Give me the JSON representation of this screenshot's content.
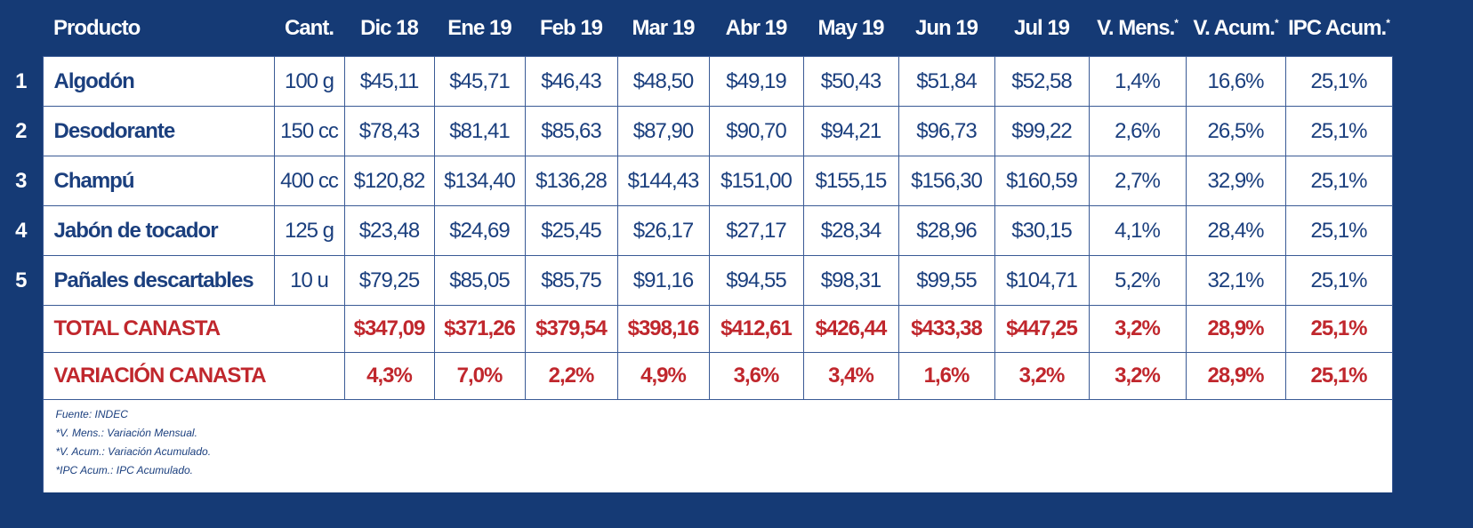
{
  "colors": {
    "background": "#153a75",
    "text": "#1b3f7e",
    "accent": "#c0272d"
  },
  "chart_data": {
    "type": "table",
    "columns": [
      "Producto",
      "Cant.",
      "Dic  18",
      "Ene 19",
      "Feb 19",
      "Mar 19",
      "Abr 19",
      "May 19",
      "Jun 19",
      "Jul 19",
      "V. Mens.",
      "V. Acum.",
      "IPC Acum."
    ],
    "asterisk": "*",
    "rows": [
      {
        "n": "1",
        "product": "Algodón",
        "qty": "100 g",
        "values": [
          "$45,11",
          "$45,71",
          "$46,43",
          "$48,50",
          "$49,19",
          "$50,43",
          "$51,84",
          "$52,58",
          "1,4%",
          "16,6%",
          "25,1%"
        ]
      },
      {
        "n": "2",
        "product": "Desodorante",
        "qty": "150 cc",
        "values": [
          "$78,43",
          "$81,41",
          "$85,63",
          "$87,90",
          "$90,70",
          "$94,21",
          "$96,73",
          "$99,22",
          "2,6%",
          "26,5%",
          "25,1%"
        ]
      },
      {
        "n": "3",
        "product": "Champú",
        "qty": "400 cc",
        "values": [
          "$120,82",
          "$134,40",
          "$136,28",
          "$144,43",
          "$151,00",
          "$155,15",
          "$156,30",
          "$160,59",
          "2,7%",
          "32,9%",
          "25,1%"
        ]
      },
      {
        "n": "4",
        "product": "Jabón de tocador",
        "qty": "125 g",
        "values": [
          "$23,48",
          "$24,69",
          "$25,45",
          "$26,17",
          "$27,17",
          "$28,34",
          "$28,96",
          "$30,15",
          "4,1%",
          "28,4%",
          "25,1%"
        ]
      },
      {
        "n": "5",
        "product": "Pañales descartables",
        "qty": "10 u",
        "values": [
          "$79,25",
          "$85,05",
          "$85,75",
          "$91,16",
          "$94,55",
          "$98,31",
          "$99,55",
          "$104,71",
          "5,2%",
          "32,1%",
          "25,1%"
        ]
      }
    ],
    "totals": [
      {
        "label": "TOTAL CANASTA",
        "values": [
          "$347,09",
          "$371,26",
          "$379,54",
          "$398,16",
          "$412,61",
          "$426,44",
          "$433,38",
          "$447,25",
          "3,2%",
          "28,9%",
          "25,1%"
        ]
      },
      {
        "label": "VARIACIÓN CANASTA",
        "values": [
          "4,3%",
          "7,0%",
          "2,2%",
          "4,9%",
          "3,6%",
          "3,4%",
          "1,6%",
          "3,2%",
          "3,2%",
          "28,9%",
          "25,1%"
        ]
      }
    ],
    "footnotes": [
      "Fuente: INDEC",
      "*V. Mens.: Variación Mensual.",
      "*V. Acum.: Variación Acumulado.",
      "*IPC Acum.: IPC  Acumulado."
    ]
  }
}
